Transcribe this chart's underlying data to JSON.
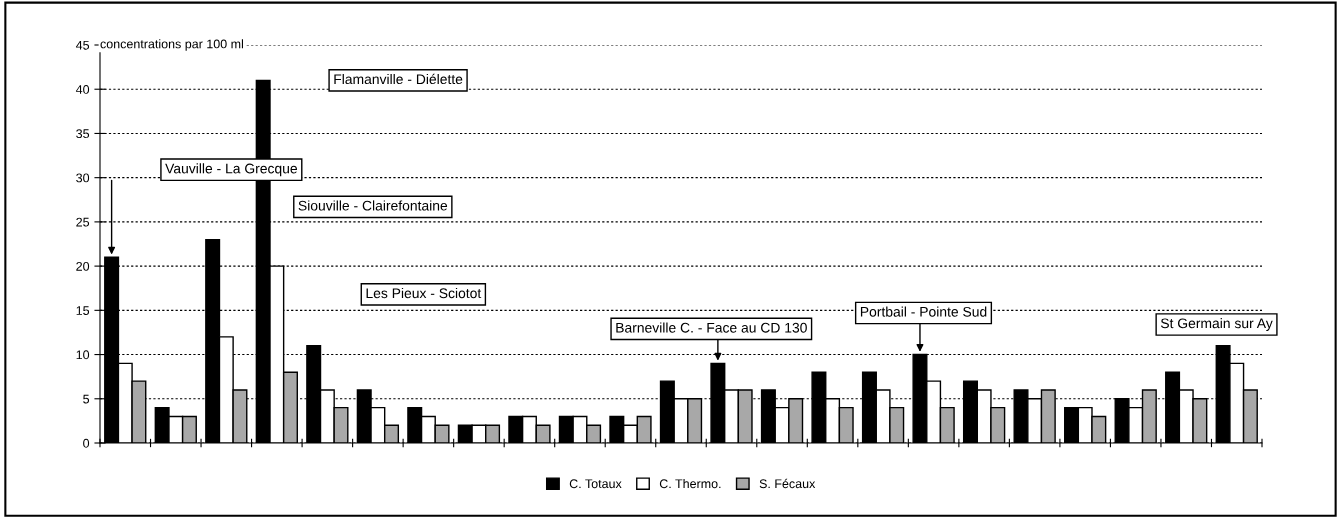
{
  "chart_data": {
    "type": "bar",
    "ylabel": "concentrations par 100 ml",
    "categories": [
      null,
      null,
      null,
      null,
      null,
      null,
      null,
      null,
      null,
      null,
      null,
      null,
      null,
      null,
      null,
      null,
      null,
      null,
      null,
      null,
      null,
      null,
      null
    ],
    "series": [
      {
        "name": "C. Totaux",
        "color": "#000000",
        "values": [
          21,
          4,
          23,
          41,
          11,
          6,
          4,
          2,
          3,
          3,
          3,
          7,
          9,
          6,
          8,
          8,
          10,
          7,
          6,
          4,
          5,
          8,
          11
        ]
      },
      {
        "name": "C. Thermo.",
        "color": "#ffffff",
        "values": [
          9,
          3,
          12,
          20,
          6,
          4,
          3,
          2,
          3,
          3,
          2,
          5,
          6,
          4,
          5,
          6,
          7,
          6,
          5,
          4,
          4,
          6,
          9
        ]
      },
      {
        "name": "S. Fécaux",
        "color": "#a8a8a8",
        "values": [
          7,
          3,
          6,
          8,
          4,
          2,
          2,
          2,
          2,
          2,
          3,
          5,
          6,
          5,
          4,
          4,
          4,
          4,
          6,
          3,
          6,
          5,
          6
        ]
      }
    ],
    "ylim": [
      0,
      45
    ],
    "yticks": [
      0,
      5,
      10,
      15,
      20,
      25,
      30,
      35,
      40,
      45
    ],
    "grid": "y",
    "legend": "bottom",
    "annotations": [
      "Vauville - La Grecque",
      "Flamanville - Diélette",
      "Siouville - Clairefontaine",
      "Les Pieux - Sciotot",
      "Barneville C. - Face au CD 130",
      "Portbail - Pointe Sud",
      "St Germain sur Ay"
    ]
  }
}
